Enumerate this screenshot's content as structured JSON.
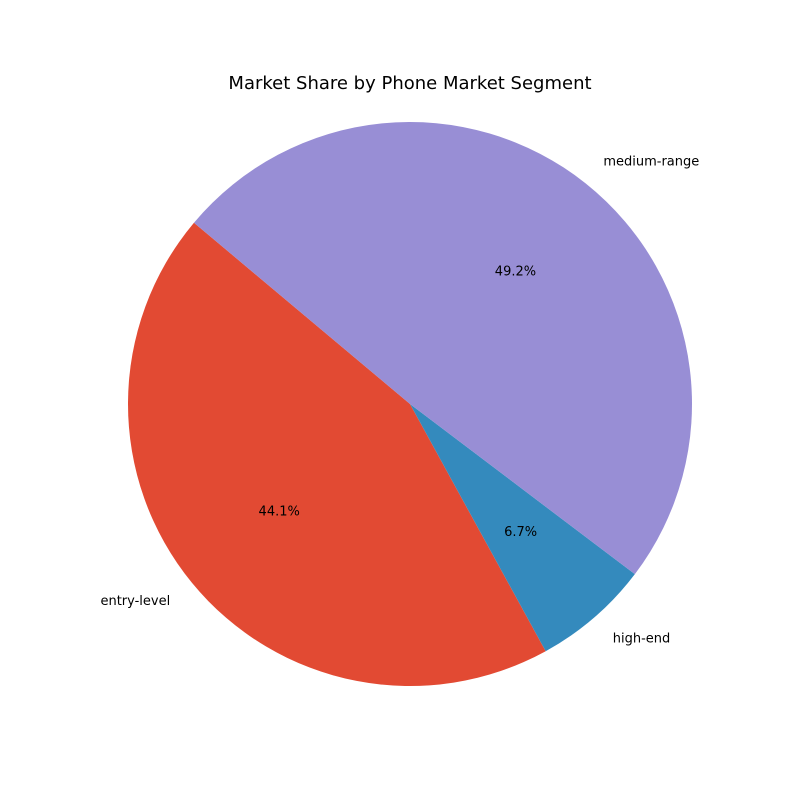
{
  "chart_data": {
    "type": "pie",
    "title": "Market Share by Phone Market Segment",
    "categories": [
      "entry-level",
      "high-end",
      "medium-range"
    ],
    "values": [
      44.1,
      6.7,
      49.2
    ],
    "percent_labels": [
      "44.1%",
      "6.7%",
      "49.2%"
    ],
    "colors": [
      "#E24A33",
      "#348ABD",
      "#988ED5"
    ],
    "start_angle_deg": 140,
    "direction": "counterclockwise",
    "legend": "none"
  }
}
